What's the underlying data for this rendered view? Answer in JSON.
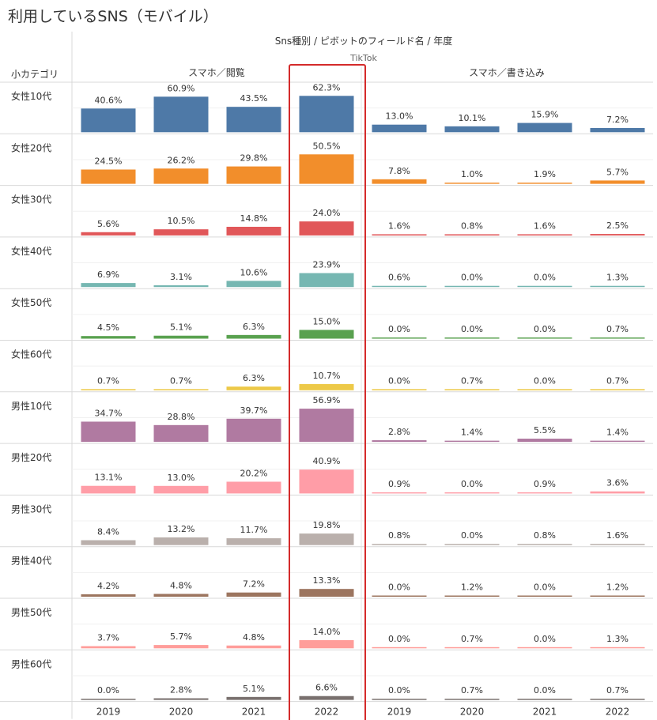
{
  "title": "利用しているSNS（モバイル）",
  "header": {
    "field_path": "Sns種別 / ピボットのフィールド名 / 年度",
    "sns_name": "TikTok",
    "row_label": "小カテゴリ",
    "group_view": "スマホ／閲覧",
    "group_post": "スマホ／書き込み"
  },
  "chart_data": {
    "type": "bar",
    "title": "利用しているSNS（モバイル）",
    "sns": "TikTok",
    "groups": [
      "スマホ／閲覧",
      "スマホ／書き込み"
    ],
    "years": [
      "2019",
      "2020",
      "2021",
      "2022"
    ],
    "highlighted_year": "2022",
    "unit": "%",
    "ylim": [
      0,
      65
    ],
    "rows": [
      {
        "label": "女性10代",
        "color": "#4e79a7",
        "view": [
          40.6,
          60.9,
          43.5,
          62.3
        ],
        "post": [
          13.0,
          10.1,
          15.9,
          7.2
        ]
      },
      {
        "label": "女性20代",
        "color": "#f28e2b",
        "view": [
          24.5,
          26.2,
          29.8,
          50.5
        ],
        "post": [
          7.8,
          1.0,
          1.9,
          5.7
        ]
      },
      {
        "label": "女性30代",
        "color": "#e15759",
        "view": [
          5.6,
          10.5,
          14.8,
          24.0
        ],
        "post": [
          1.6,
          0.8,
          1.6,
          2.5
        ]
      },
      {
        "label": "女性40代",
        "color": "#76b7b2",
        "view": [
          6.9,
          3.1,
          10.6,
          23.9
        ],
        "post": [
          0.6,
          0.0,
          0.0,
          1.3
        ]
      },
      {
        "label": "女性50代",
        "color": "#59a14f",
        "view": [
          4.5,
          5.1,
          6.3,
          15.0
        ],
        "post": [
          0.0,
          0.0,
          0.0,
          0.7
        ]
      },
      {
        "label": "女性60代",
        "color": "#edc948",
        "view": [
          0.7,
          0.7,
          6.3,
          10.7
        ],
        "post": [
          0.0,
          0.7,
          0.0,
          0.7
        ]
      },
      {
        "label": "男性10代",
        "color": "#b07aa1",
        "view": [
          34.7,
          28.8,
          39.7,
          56.9
        ],
        "post": [
          2.8,
          1.4,
          5.5,
          1.4
        ]
      },
      {
        "label": "男性20代",
        "color": "#ff9da7",
        "view": [
          13.1,
          13.0,
          20.2,
          40.9
        ],
        "post": [
          0.9,
          0.0,
          0.9,
          3.6
        ]
      },
      {
        "label": "男性30代",
        "color": "#bab0ac",
        "view": [
          8.4,
          13.2,
          11.7,
          19.8
        ],
        "post": [
          0.8,
          0.0,
          0.8,
          1.6
        ]
      },
      {
        "label": "男性40代",
        "color": "#9c755f",
        "view": [
          4.2,
          4.8,
          7.2,
          13.3
        ],
        "post": [
          0.0,
          1.2,
          0.0,
          1.2
        ]
      },
      {
        "label": "男性50代",
        "color": "#ff9d9a",
        "view": [
          3.7,
          5.7,
          4.8,
          14.0
        ],
        "post": [
          0.0,
          0.7,
          0.0,
          1.3
        ]
      },
      {
        "label": "男性60代",
        "color": "#79706e",
        "view": [
          0.0,
          2.8,
          5.1,
          6.6
        ],
        "post": [
          0.0,
          0.7,
          0.0,
          0.7
        ]
      }
    ]
  }
}
